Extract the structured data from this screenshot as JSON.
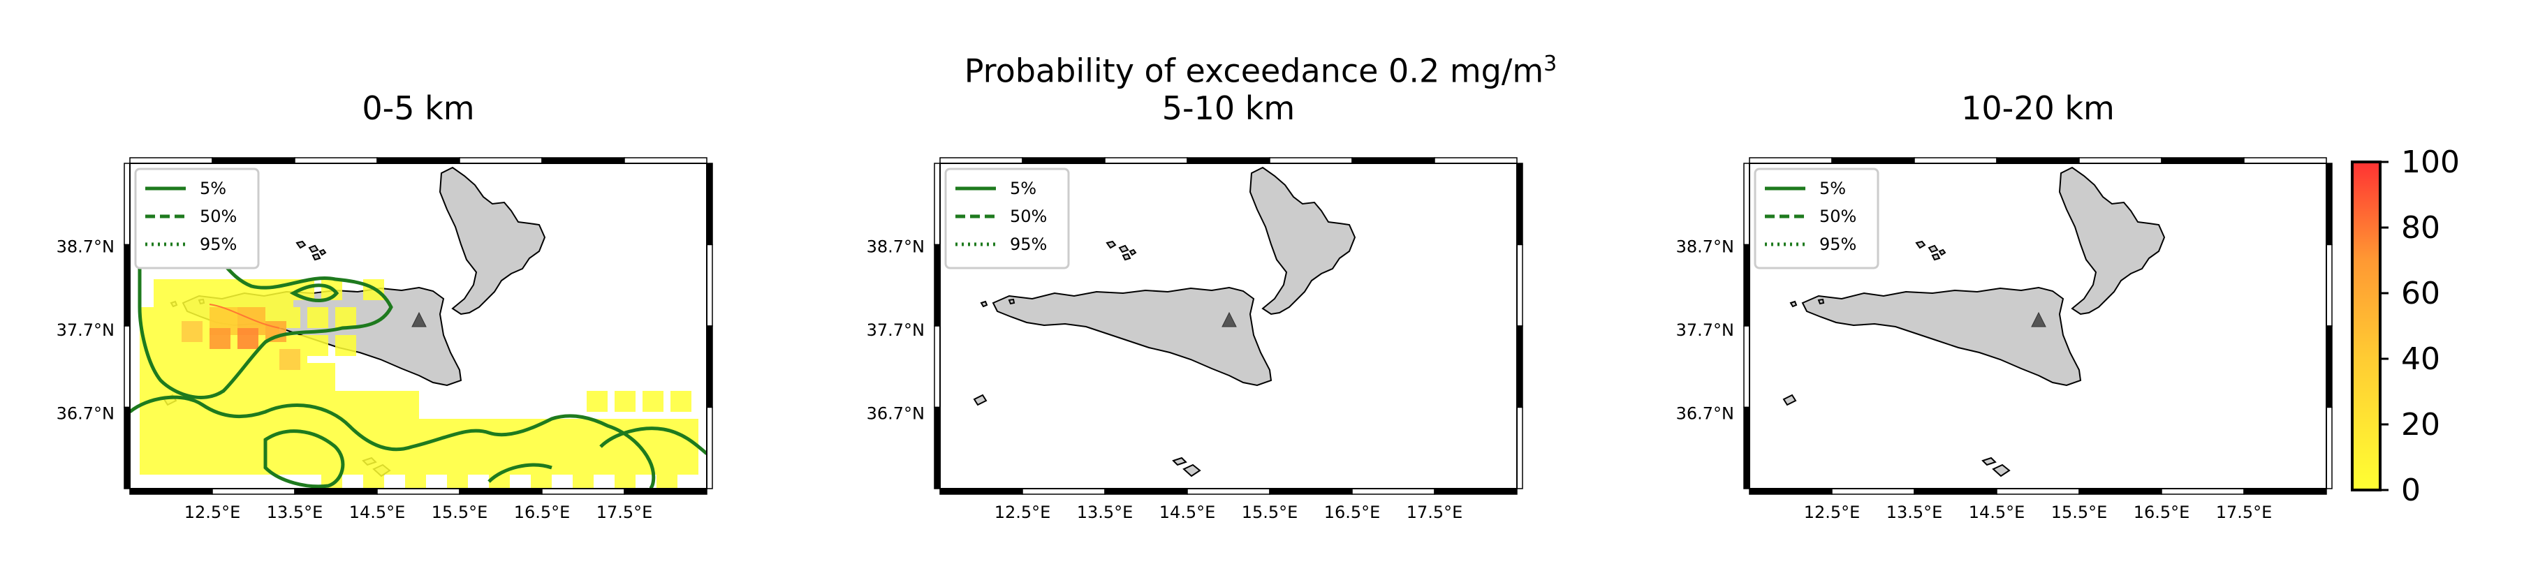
{
  "figure": {
    "title_line1": "Probability of exceedance 0.2 mg/m",
    "title_sup": "3"
  },
  "panels": [
    {
      "title": "0-5 km"
    },
    {
      "title": "5-10 km"
    },
    {
      "title": "10-20 km"
    }
  ],
  "legend": {
    "items": [
      {
        "label": "5%",
        "style": "solid"
      },
      {
        "label": "50%",
        "style": "dashed"
      },
      {
        "label": "95%",
        "style": "dotted"
      }
    ]
  },
  "axes": {
    "lat_ticks": [
      {
        "value": 38.7,
        "label": "38.7°N"
      },
      {
        "value": 37.7,
        "label": "37.7°N"
      },
      {
        "value": 36.7,
        "label": "36.7°N"
      }
    ],
    "lon_ticks": [
      {
        "value": 12.5,
        "label": "12.5°E"
      },
      {
        "value": 13.5,
        "label": "13.5°E"
      },
      {
        "value": 14.5,
        "label": "14.5°E"
      },
      {
        "value": 15.5,
        "label": "15.5°E"
      },
      {
        "value": 16.5,
        "label": "16.5°E"
      },
      {
        "value": 17.5,
        "label": "17.5°E"
      }
    ],
    "lon_range": [
      11.5,
      18.5
    ],
    "lat_range": [
      35.8,
      39.7
    ]
  },
  "colorbar": {
    "ticks": [
      "100",
      "80",
      "60",
      "40",
      "20",
      "0"
    ],
    "range": [
      0,
      100
    ],
    "colors": [
      "#ffff33",
      "#ff3333"
    ]
  },
  "colors": {
    "land": "#cccccc",
    "contour": "#1e7a1e",
    "vent_marker": "#555555"
  }
}
